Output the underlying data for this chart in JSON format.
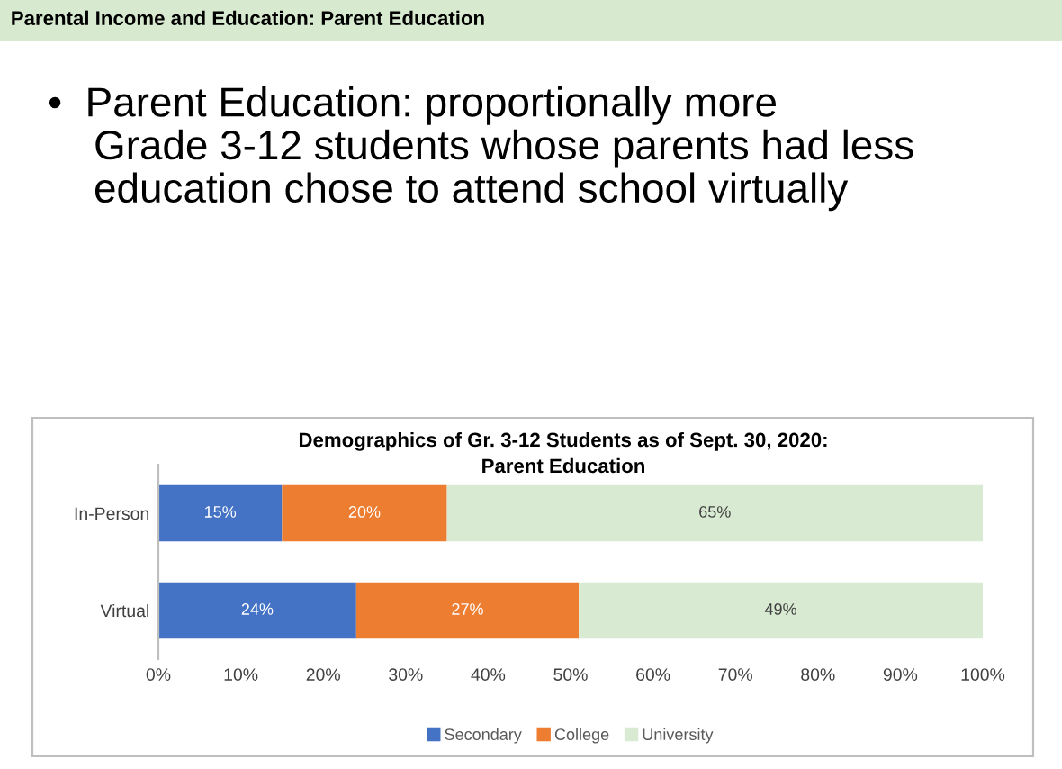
{
  "chart_data": {
    "type": "bar",
    "orientation": "horizontal",
    "stacked": true,
    "title": "Demographics of Gr. 3-12 Students as of Sept. 30, 2020:\nParent Education",
    "annotations": [
      "Parental Income and Education: Parent Education",
      "•  Parent Education: proportionally more\n    Grade 3-12 students whose parents had less\n    education chose to attend school virtually"
    ],
    "categories": [
      "In-Person",
      "Virtual"
    ],
    "series": [
      {
        "name": "Secondary",
        "color": "#4472c4",
        "values": [
          15,
          24
        ],
        "value_labels": [
          "15%",
          "24%"
        ]
      },
      {
        "name": "College",
        "color": "#ed7d31",
        "values": [
          20,
          27
        ],
        "value_labels": [
          "20%",
          "27%"
        ]
      },
      {
        "name": "University",
        "color": "#d9ead3",
        "values": [
          65,
          49
        ],
        "value_labels": [
          "65%",
          "49%"
        ]
      }
    ],
    "xlim": [
      0,
      100
    ],
    "xticks": [
      {
        "value": 0,
        "label": "0%"
      },
      {
        "value": 10,
        "label": "10%"
      },
      {
        "value": 20,
        "label": "20%"
      },
      {
        "value": 30,
        "label": "30%"
      },
      {
        "value": 40,
        "label": "40%"
      },
      {
        "value": 50,
        "label": "50%"
      },
      {
        "value": 60,
        "label": "60%"
      },
      {
        "value": 70,
        "label": "70%"
      },
      {
        "value": 80,
        "label": "80%"
      },
      {
        "value": 90,
        "label": "90%"
      },
      {
        "value": 100,
        "label": "100%"
      }
    ],
    "legend": "bottom"
  }
}
